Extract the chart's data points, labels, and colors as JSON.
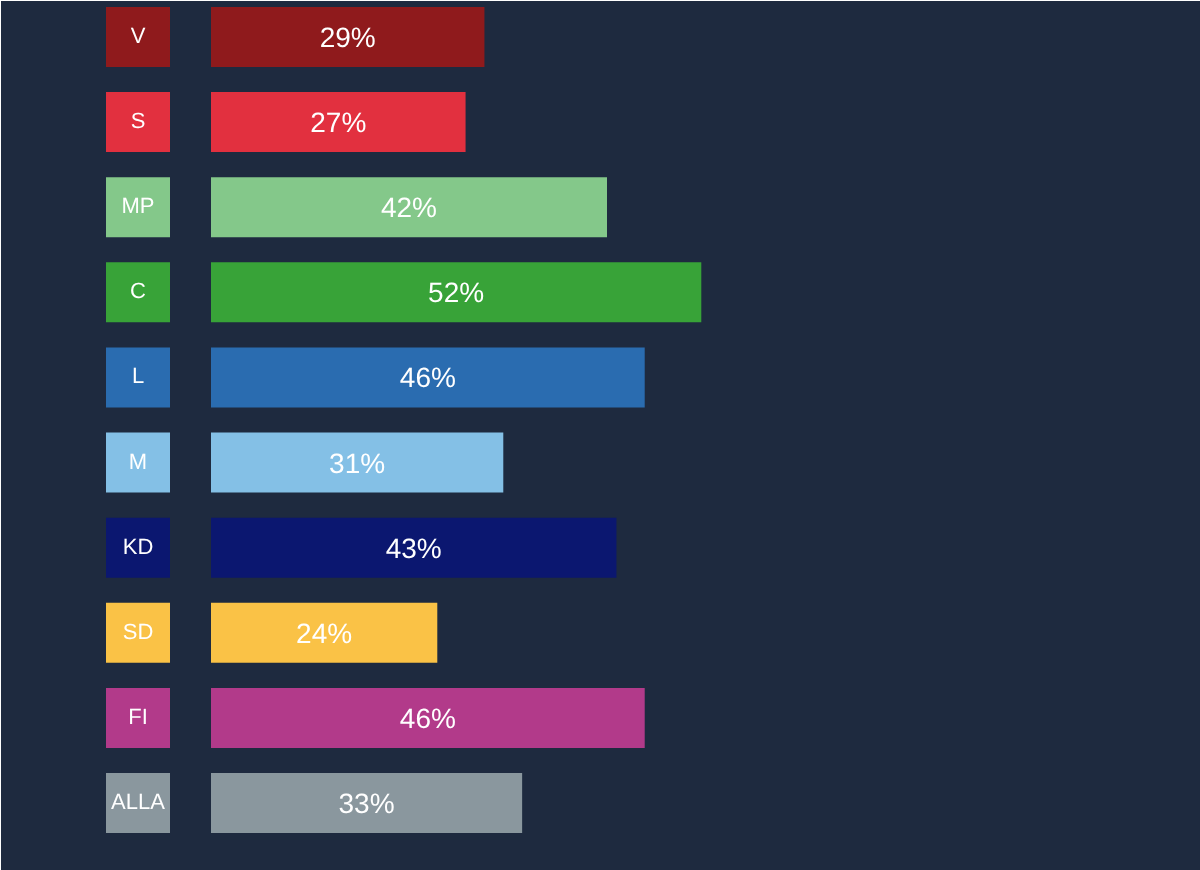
{
  "chart_data": {
    "type": "bar",
    "orientation": "horizontal",
    "categories": [
      "V",
      "S",
      "MP",
      "C",
      "L",
      "M",
      "KD",
      "SD",
      "FI",
      "ALLA"
    ],
    "values": [
      29,
      27,
      42,
      52,
      46,
      31,
      43,
      24,
      46,
      33
    ],
    "colors": [
      "#8f1a1c",
      "#e2303f",
      "#84c88a",
      "#38a338",
      "#2a6cb0",
      "#84c0e6",
      "#0b1770",
      "#fac246",
      "#b23a8a",
      "#8a979e"
    ],
    "value_labels": [
      "29%",
      "27%",
      "42%",
      "52%",
      "46%",
      "31%",
      "43%",
      "24%",
      "46%",
      "33%"
    ],
    "xlim": [
      0,
      105
    ]
  }
}
